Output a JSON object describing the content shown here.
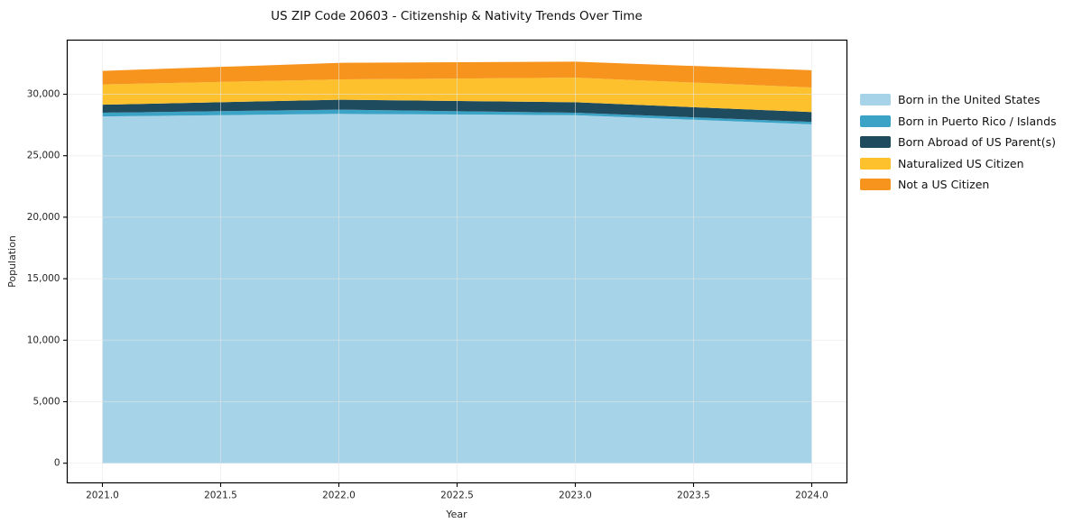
{
  "title": "US ZIP Code 20603 - Citizenship & Nativity Trends Over Time",
  "chart_data": {
    "type": "area",
    "stacked": true,
    "title": "US ZIP Code 20603 - Citizenship & Nativity Trends Over Time",
    "xlabel": "Year",
    "ylabel": "Population",
    "x": [
      2021,
      2022,
      2023,
      2024
    ],
    "series": [
      {
        "name": "Born in the United States",
        "color": "#a6d3e8",
        "values": [
          28200,
          28400,
          28300,
          27550
        ]
      },
      {
        "name": "Born in Puerto Rico / Islands",
        "color": "#3aa3c6",
        "values": [
          300,
          350,
          200,
          200
        ]
      },
      {
        "name": "Born Abroad of US Parent(s)",
        "color": "#1f4b5e",
        "values": [
          650,
          800,
          850,
          800
        ]
      },
      {
        "name": "Naturalized US Citizen",
        "color": "#fdc12e",
        "values": [
          1650,
          1650,
          2000,
          2000
        ]
      },
      {
        "name": "Not a US Citizen",
        "color": "#f7941e",
        "values": [
          1100,
          1350,
          1300,
          1400
        ]
      }
    ],
    "stacked_totals": [
      31900,
      32550,
      32650,
      31950
    ],
    "xtick_values": [
      2021.0,
      2021.5,
      2022.0,
      2022.5,
      2023.0,
      2023.5,
      2024.0
    ],
    "xtick_labels": [
      "2021.0",
      "2021.5",
      "2022.0",
      "2022.5",
      "2023.0",
      "2023.5",
      "2024.0"
    ],
    "ytick_values": [
      0,
      5000,
      10000,
      15000,
      20000,
      25000,
      30000
    ],
    "ytick_labels": [
      "0",
      "5,000",
      "10,000",
      "15,000",
      "20,000",
      "25,000",
      "30,000"
    ],
    "xlim": [
      2020.851,
      2024.149
    ],
    "ylim": [
      -1600,
      34400
    ],
    "grid": true,
    "grid_color": "#e6e6e6",
    "background_color": "#ffffff",
    "legend_position": "right outside"
  }
}
